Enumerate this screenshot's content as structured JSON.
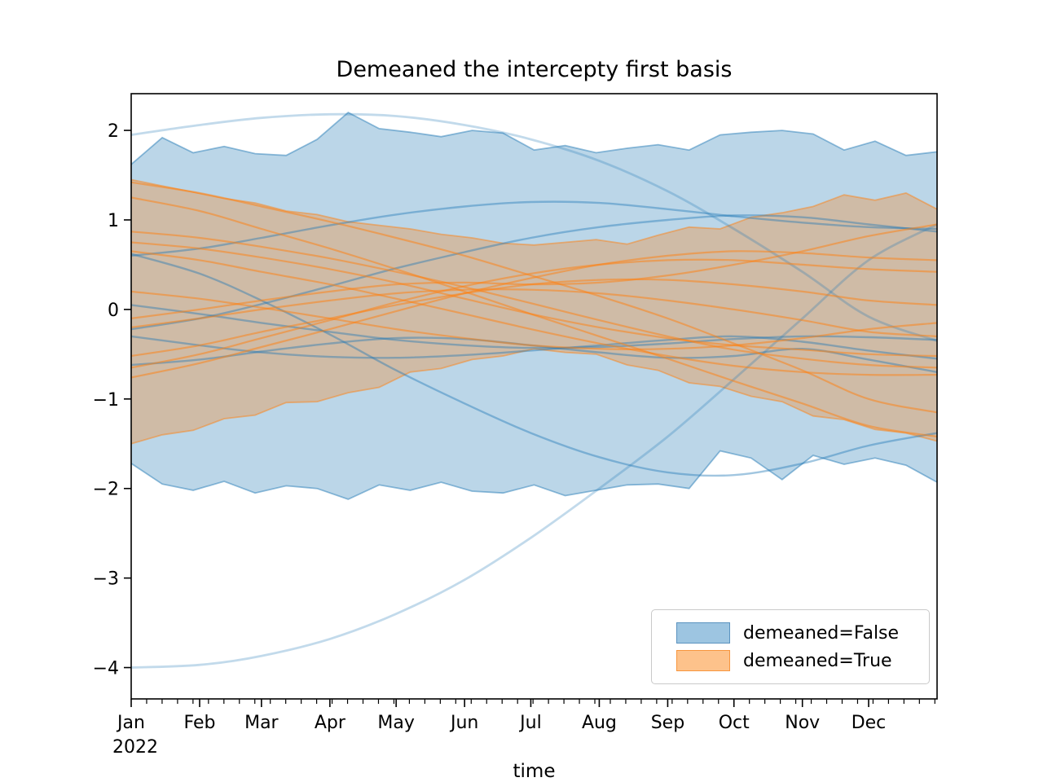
{
  "title": "Demeaned the intercepty first basis",
  "xlabel": "time",
  "legend": {
    "items": [
      {
        "label": "demeaned=False",
        "fill": "#9dc5e1",
        "border": "#5b93c0"
      },
      {
        "label": "demeaned=True",
        "fill": "#fdc28b",
        "border": "#f8963d"
      }
    ]
  },
  "chart_data": {
    "type": "line",
    "title": "Demeaned the intercepty first basis",
    "xlabel": "time",
    "ylabel": "",
    "grid": false,
    "legend_position": "lower right",
    "xlim_days": [
      0,
      365
    ],
    "ylim": [
      -4.35,
      2.41
    ],
    "y_ticks": [
      {
        "label": "2",
        "value": 2
      },
      {
        "label": "1",
        "value": 1
      },
      {
        "label": "0",
        "value": 0
      },
      {
        "label": "−1",
        "value": -1
      },
      {
        "label": "−2",
        "value": -2
      },
      {
        "label": "−3",
        "value": -3
      },
      {
        "label": "−4",
        "value": -4
      }
    ],
    "x_ticks": [
      {
        "label": "Jan",
        "day": 0
      },
      {
        "label": "Feb",
        "day": 31
      },
      {
        "label": "Mar",
        "day": 59
      },
      {
        "label": "Apr",
        "day": 90
      },
      {
        "label": "May",
        "day": 120
      },
      {
        "label": "Jun",
        "day": 151
      },
      {
        "label": "Jul",
        "day": 181
      },
      {
        "label": "Aug",
        "day": 212
      },
      {
        "label": "Sep",
        "day": 243
      },
      {
        "label": "Oct",
        "day": 273
      },
      {
        "label": "Nov",
        "day": 304
      },
      {
        "label": "Dec",
        "day": 334
      }
    ],
    "x_year_label": "2022",
    "x_minor_tick_every_days": 7,
    "style": {
      "blue": "#1f77b4",
      "orange": "#ff7f0e",
      "band_fill_alpha": 0.3,
      "band_edge_alpha": 0.48,
      "line_alpha": 0.42,
      "light_line_alpha": 0.27,
      "orange_line_alpha": 0.5,
      "line_width": 2.4,
      "band_edge_width": 1.8
    },
    "band_x_months": [
      0,
      0.462,
      0.923,
      1.385,
      1.846,
      2.308,
      2.769,
      3.231,
      3.692,
      4.154,
      4.615,
      5.077,
      5.538,
      6.0,
      6.462,
      6.923,
      7.385,
      7.846,
      8.308,
      8.769,
      9.231,
      9.692,
      10.154,
      10.615,
      11.077,
      11.538,
      12.0
    ],
    "bands": [
      {
        "name": "demeaned=False",
        "upper": [
          1.62,
          1.92,
          1.75,
          1.82,
          1.74,
          1.72,
          1.9,
          2.2,
          2.02,
          1.98,
          1.93,
          2.0,
          1.97,
          1.78,
          1.83,
          1.75,
          1.8,
          1.84,
          1.78,
          1.95,
          1.98,
          2.0,
          1.96,
          1.78,
          1.88,
          1.72,
          1.76
        ],
        "lower": [
          -1.72,
          -1.95,
          -2.02,
          -1.92,
          -2.05,
          -1.97,
          -2.0,
          -2.12,
          -1.96,
          -2.02,
          -1.93,
          -2.03,
          -2.05,
          -1.96,
          -2.08,
          -2.02,
          -1.96,
          -1.95,
          -2.0,
          -1.58,
          -1.66,
          -1.9,
          -1.63,
          -1.73,
          -1.66,
          -1.74,
          -1.93
        ]
      },
      {
        "name": "demeaned=True",
        "upper": [
          1.45,
          1.38,
          1.31,
          1.24,
          1.19,
          1.1,
          1.06,
          0.98,
          0.94,
          0.9,
          0.84,
          0.8,
          0.74,
          0.72,
          0.75,
          0.78,
          0.73,
          0.83,
          0.92,
          0.9,
          1.03,
          1.08,
          1.15,
          1.28,
          1.22,
          1.3,
          1.12
        ],
        "lower": [
          -1.5,
          -1.4,
          -1.35,
          -1.22,
          -1.18,
          -1.04,
          -1.03,
          -0.93,
          -0.87,
          -0.7,
          -0.66,
          -0.56,
          -0.52,
          -0.44,
          -0.48,
          -0.5,
          -0.62,
          -0.68,
          -0.82,
          -0.86,
          -0.97,
          -1.03,
          -1.19,
          -1.23,
          -1.34,
          -1.38,
          -1.47
        ]
      }
    ],
    "series_x_months": [
      0,
      1.019,
      1.94,
      2.959,
      3.945,
      4.964,
      5.951,
      6.97,
      7.989,
      8.975,
      9.995,
      10.981,
      12.0
    ],
    "blue_lines": [
      {
        "light": true,
        "values": [
          1.95,
          2.06,
          2.14,
          2.18,
          2.16,
          2.06,
          1.9,
          1.66,
          1.32,
          0.9,
          0.42,
          -0.08,
          -0.35
        ]
      },
      {
        "light": true,
        "values": [
          -4.0,
          -3.97,
          -3.87,
          -3.68,
          -3.4,
          -3.02,
          -2.55,
          -2.0,
          -1.42,
          -0.78,
          -0.1,
          0.55,
          0.95
        ]
      },
      {
        "light": false,
        "values": [
          0.6,
          0.68,
          0.8,
          0.94,
          1.06,
          1.15,
          1.2,
          1.19,
          1.12,
          1.04,
          0.97,
          0.92,
          0.9
        ]
      },
      {
        "light": false,
        "values": [
          -0.22,
          -0.1,
          0.06,
          0.26,
          0.46,
          0.64,
          0.8,
          0.92,
          1.0,
          1.05,
          1.03,
          0.95,
          0.87
        ]
      },
      {
        "light": false,
        "values": [
          0.62,
          0.4,
          0.1,
          -0.28,
          -0.68,
          -1.05,
          -1.38,
          -1.65,
          -1.82,
          -1.85,
          -1.72,
          -1.52,
          -1.38
        ]
      },
      {
        "light": false,
        "values": [
          0.05,
          -0.05,
          -0.15,
          -0.25,
          -0.34,
          -0.4,
          -0.43,
          -0.42,
          -0.38,
          -0.33,
          -0.3,
          -0.31,
          -0.34
        ]
      },
      {
        "light": false,
        "values": [
          -0.3,
          -0.4,
          -0.48,
          -0.53,
          -0.54,
          -0.51,
          -0.46,
          -0.4,
          -0.34,
          -0.3,
          -0.36,
          -0.46,
          -0.55
        ]
      },
      {
        "light": false,
        "values": [
          -0.62,
          -0.56,
          -0.47,
          -0.38,
          -0.32,
          -0.33,
          -0.4,
          -0.48,
          -0.54,
          -0.52,
          -0.44,
          -0.56,
          -0.7
        ]
      }
    ],
    "orange_lines": [
      {
        "values": [
          1.42,
          1.3,
          1.15,
          0.98,
          0.8,
          0.6,
          0.38,
          0.15,
          -0.1,
          -0.38,
          -0.68,
          -1.0,
          -1.15
        ]
      },
      {
        "values": [
          1.25,
          1.1,
          0.9,
          0.68,
          0.45,
          0.2,
          -0.05,
          -0.3,
          -0.55,
          -0.8,
          -1.05,
          -1.3,
          -1.42
        ]
      },
      {
        "values": [
          0.87,
          0.8,
          0.7,
          0.57,
          0.42,
          0.25,
          0.07,
          -0.12,
          -0.3,
          -0.45,
          -0.55,
          -0.62,
          -0.65
        ]
      },
      {
        "values": [
          0.75,
          0.68,
          0.58,
          0.45,
          0.3,
          0.12,
          -0.05,
          -0.2,
          -0.32,
          -0.4,
          -0.45,
          -0.5,
          -0.52
        ]
      },
      {
        "values": [
          -0.76,
          -0.6,
          -0.42,
          -0.22,
          -0.02,
          0.18,
          0.35,
          0.5,
          0.6,
          0.65,
          0.63,
          0.58,
          0.55
        ]
      },
      {
        "values": [
          -0.65,
          -0.5,
          -0.32,
          -0.12,
          0.08,
          0.26,
          0.4,
          0.5,
          0.55,
          0.55,
          0.5,
          0.45,
          0.42
        ]
      },
      {
        "values": [
          -0.52,
          -0.4,
          -0.25,
          -0.1,
          0.05,
          0.18,
          0.28,
          0.33,
          0.33,
          0.28,
          0.2,
          0.1,
          0.05
        ]
      },
      {
        "values": [
          -0.2,
          -0.1,
          0.0,
          0.1,
          0.18,
          0.22,
          0.22,
          0.18,
          0.1,
          0.0,
          -0.12,
          -0.25,
          -0.3
        ]
      },
      {
        "values": [
          0.2,
          0.12,
          0.02,
          -0.1,
          -0.22,
          -0.32,
          -0.4,
          -0.44,
          -0.44,
          -0.4,
          -0.32,
          -0.22,
          -0.15
        ]
      },
      {
        "values": [
          0.65,
          0.55,
          0.42,
          0.28,
          0.12,
          -0.05,
          -0.22,
          -0.38,
          -0.52,
          -0.63,
          -0.7,
          -0.73,
          -0.73
        ]
      },
      {
        "values": [
          -0.1,
          0.0,
          0.1,
          0.2,
          0.28,
          0.3,
          0.28,
          0.3,
          0.38,
          0.5,
          0.65,
          0.82,
          0.95
        ]
      }
    ]
  }
}
